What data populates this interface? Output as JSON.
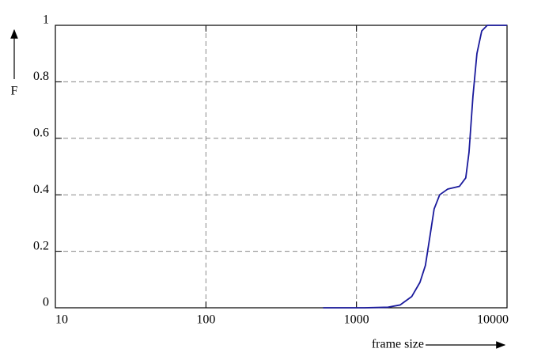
{
  "chart_data": {
    "type": "line",
    "x_label": "frame size",
    "y_label": "F",
    "log_x": true,
    "grid": true,
    "x": [
      600,
      1130,
      1620,
      1950,
      2330,
      2640,
      2870,
      3090,
      3280,
      3570,
      4030,
      4830,
      5320,
      5590,
      5940,
      6310,
      6790,
      7390,
      10000
    ],
    "series": [
      {
        "name": "F",
        "color": "#1a1a9c",
        "values": [
          0,
          0,
          0.002,
          0.01,
          0.04,
          0.09,
          0.15,
          0.26,
          0.35,
          0.4,
          0.42,
          0.43,
          0.46,
          0.55,
          0.75,
          0.9,
          0.98,
          1,
          1
        ]
      }
    ],
    "xlim": [
      10,
      10000
    ],
    "xticks": [
      10,
      100,
      1000,
      10000
    ],
    "ylim": [
      0,
      1
    ],
    "yticks": [
      0,
      0.2,
      0.4,
      0.6,
      0.8,
      1
    ]
  }
}
